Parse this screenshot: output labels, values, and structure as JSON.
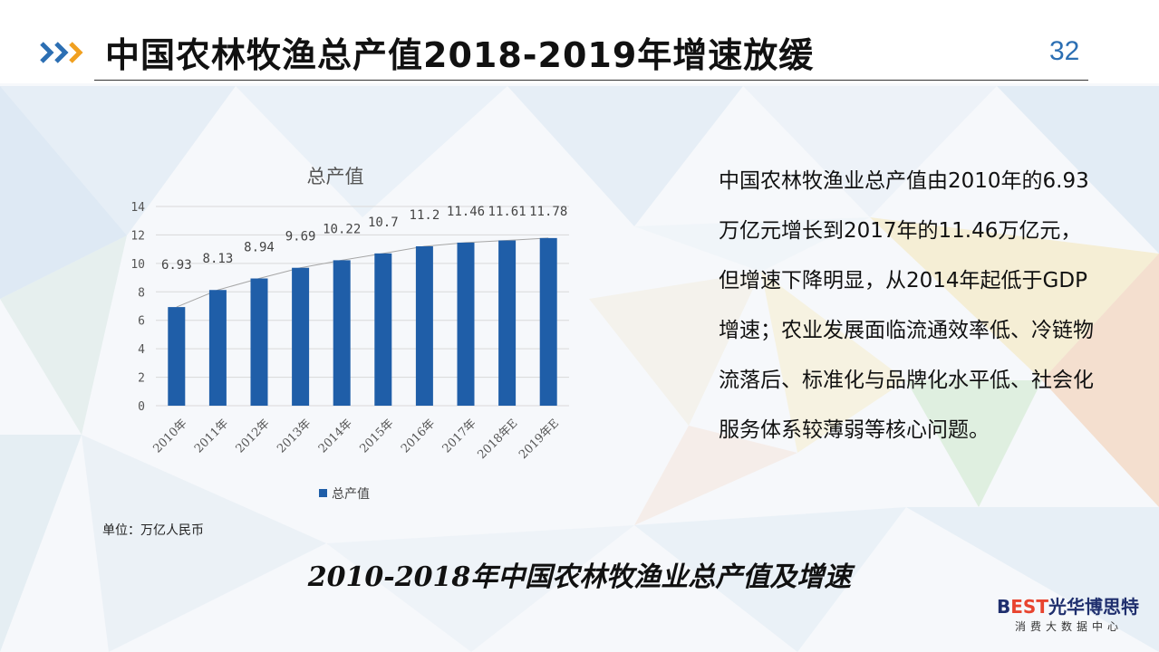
{
  "header": {
    "title": "中国农林牧渔总产值2018-2019年增速放缓",
    "page_number": "32"
  },
  "description": "中国农林牧渔业总产值由2010年的6.93万亿元增长到2017年的11.46万亿元，但增速下降明显，从2014年起低于GDP增速；农业发展面临流通效率低、冷链物流落后、标准化与品牌化水平低、社会化服务体系较薄弱等核心问题。",
  "unit_note": "单位：万亿人民币",
  "caption": "2010-2018年中国农林牧渔业总产值及增速",
  "brand": {
    "logo_prefix": "B",
    "logo_accent": "EST",
    "logo_name": "光华博思特",
    "subtitle": "消费大数据中心"
  },
  "colors": {
    "bar": "#1f5ea8",
    "trend_line": "#a6a6a6",
    "accent_blue": "#2c6fb3",
    "accent_orange": "#f0a020"
  },
  "chart_data": {
    "type": "bar",
    "title": "总产值",
    "categories": [
      "2010年",
      "2011年",
      "2012年",
      "2013年",
      "2014年",
      "2015年",
      "2016年",
      "2017年",
      "2018年E",
      "2019年E"
    ],
    "series": [
      {
        "name": "总产值",
        "values": [
          6.93,
          8.13,
          8.94,
          9.69,
          10.22,
          10.7,
          11.2,
          11.46,
          11.61,
          11.78
        ]
      }
    ],
    "data_labels": [
      "6.93",
      "8.13",
      "8.94",
      "9.69",
      "10.22",
      "10.7",
      "11.2",
      "11.46",
      "11.61",
      "11.78"
    ],
    "y_ticks": [
      0,
      2,
      4,
      6,
      8,
      10,
      12,
      14
    ],
    "ylim": [
      0,
      14
    ],
    "grid": true,
    "trend_line": true,
    "legend_position": "bottom"
  }
}
